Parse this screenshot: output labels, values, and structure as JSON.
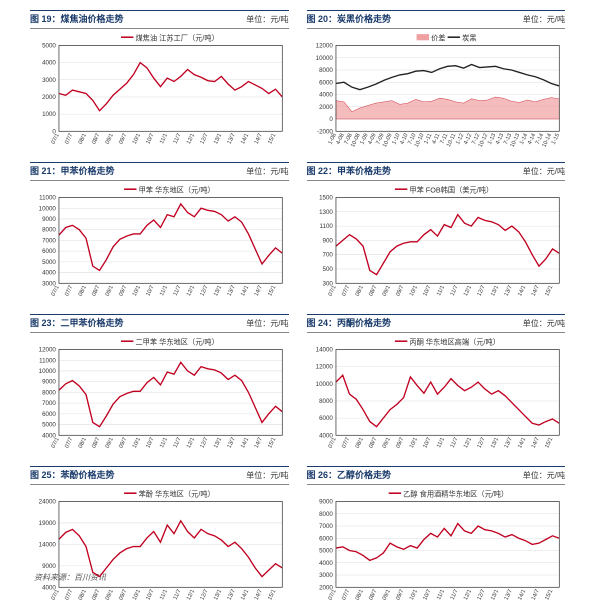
{
  "colors": {
    "primary_line": "#c00020",
    "area_fill": "#f0a0a0",
    "area_line": "#d04050",
    "dark_line": "#222222",
    "grid": "#dddddd",
    "border": "#1a3a6a",
    "axis": "#333333",
    "bg": "#ffffff"
  },
  "typography": {
    "title_fontsize": 9,
    "unit_fontsize": 8,
    "legend_fontsize": 7,
    "axis_fontsize": 6
  },
  "xticks": [
    "07/1",
    "07/7",
    "08/1",
    "08/7",
    "09/1",
    "09/7",
    "10/1",
    "10/7",
    "11/1",
    "11/7",
    "12/1",
    "12/7",
    "13/1",
    "13/7",
    "14/1",
    "14/7",
    "15/1"
  ],
  "xticks_alt": [
    "1-08",
    "4-08",
    "7-08",
    "10-08",
    "1-09",
    "4-09",
    "7-09",
    "10-09",
    "1-10",
    "4-10",
    "7-10",
    "10-10",
    "1-11",
    "4-11",
    "7-11",
    "10-11",
    "1-12",
    "4-12",
    "7-12",
    "10-12",
    "1-13",
    "4-13",
    "7-13",
    "10-13",
    "1-14",
    "4-14",
    "7-14",
    "10-14",
    "1-15"
  ],
  "charts": [
    {
      "id": "c19",
      "fig_label": "图 19：煤焦油价格走势",
      "unit": "单位：元/吨",
      "legend": [
        {
          "label": "煤焦油 江苏工厂（元/吨）",
          "color": "primary_line",
          "type": "line"
        }
      ],
      "ymin": 0,
      "ymax": 5000,
      "ytick_step": 1000,
      "series": [
        {
          "color": "primary_line",
          "type": "line",
          "y": [
            2200,
            2100,
            2400,
            2300,
            2200,
            1800,
            1200,
            1600,
            2100,
            2450,
            2800,
            3300,
            4000,
            3700,
            3100,
            2600,
            3100,
            2900,
            3200,
            3600,
            3300,
            3150,
            2950,
            2900,
            3200,
            2750,
            2400,
            2600,
            2900,
            2700,
            2500,
            2200,
            2450,
            2000
          ]
        }
      ]
    },
    {
      "id": "c20",
      "fig_label": "图 20：炭黑价格走势",
      "unit": "单位：元/吨",
      "legend": [
        {
          "label": "价差",
          "color": "area_fill",
          "type": "area"
        },
        {
          "label": "炭黑",
          "color": "dark_line",
          "type": "line"
        }
      ],
      "ymin": -2000,
      "ymax": 12000,
      "ytick_step": 2000,
      "use_alt_xticks": true,
      "series": [
        {
          "color": "area_fill",
          "type": "area",
          "y": [
            3000,
            2800,
            1200,
            1800,
            2200,
            2600,
            2800,
            3000,
            2400,
            2600,
            3200,
            2800,
            2900,
            3400,
            3200,
            2800,
            2600,
            3300,
            3000,
            3100,
            3600,
            3400,
            2900,
            2700,
            3100,
            2800,
            3200,
            3500,
            3300
          ]
        },
        {
          "color": "dark_line",
          "type": "line",
          "y": [
            5800,
            6000,
            5200,
            4800,
            5200,
            5700,
            6300,
            6800,
            7200,
            7400,
            7800,
            7900,
            7600,
            8200,
            8600,
            8700,
            8300,
            8900,
            8400,
            8500,
            8600,
            8200,
            8000,
            7600,
            7200,
            6900,
            6400,
            5800,
            5400
          ]
        }
      ]
    },
    {
      "id": "c21",
      "fig_label": "图 21：甲苯价格走势",
      "unit": "单位：元/吨",
      "legend": [
        {
          "label": "甲苯 华东地区（元/吨）",
          "color": "primary_line",
          "type": "line"
        }
      ],
      "ymin": 3000,
      "ymax": 11000,
      "ytick_step": 1000,
      "series": [
        {
          "color": "primary_line",
          "type": "line",
          "y": [
            7500,
            8200,
            8400,
            8000,
            7200,
            4600,
            4200,
            5200,
            6400,
            7100,
            7400,
            7600,
            7600,
            8400,
            8900,
            8200,
            9400,
            9200,
            10400,
            9600,
            9200,
            10000,
            9800,
            9700,
            9400,
            8800,
            9200,
            8700,
            7600,
            6200,
            4800,
            5600,
            6300,
            5800
          ]
        }
      ]
    },
    {
      "id": "c22",
      "fig_label": "图 22：甲苯价格走势",
      "unit": "单位：元/吨",
      "legend": [
        {
          "label": "甲苯 FOB韩国（美元/吨）",
          "color": "primary_line",
          "type": "line"
        }
      ],
      "ymin": 300,
      "ymax": 1500,
      "ytick_step": 200,
      "series": [
        {
          "color": "primary_line",
          "type": "line",
          "y": [
            820,
            900,
            980,
            920,
            820,
            480,
            420,
            580,
            740,
            820,
            860,
            880,
            880,
            980,
            1050,
            960,
            1120,
            1080,
            1260,
            1140,
            1100,
            1220,
            1180,
            1160,
            1120,
            1040,
            1100,
            1020,
            880,
            700,
            540,
            640,
            780,
            720
          ]
        }
      ]
    },
    {
      "id": "c23",
      "fig_label": "图 23：二甲苯价格走势",
      "unit": "单位：元/吨",
      "legend": [
        {
          "label": "二甲苯 华东地区（元/吨）",
          "color": "primary_line",
          "type": "line"
        }
      ],
      "ymin": 4000,
      "ymax": 12000,
      "ytick_step": 1000,
      "series": [
        {
          "color": "primary_line",
          "type": "line",
          "y": [
            8200,
            8800,
            9100,
            8600,
            7800,
            5200,
            4800,
            5800,
            6900,
            7600,
            7900,
            8100,
            8100,
            8900,
            9400,
            8700,
            9900,
            9700,
            10800,
            10000,
            9600,
            10400,
            10200,
            10100,
            9800,
            9200,
            9600,
            9100,
            8000,
            6600,
            5200,
            6000,
            6700,
            6200
          ]
        }
      ]
    },
    {
      "id": "c24",
      "fig_label": "图 24：丙酮价格走势",
      "unit": "单位：元/吨",
      "legend": [
        {
          "label": "丙酮 华东地区高端（元/吨）",
          "color": "primary_line",
          "type": "line"
        }
      ],
      "ymin": 4000,
      "ymax": 14000,
      "ytick_step": 2000,
      "series": [
        {
          "color": "primary_line",
          "type": "line",
          "y": [
            10200,
            11000,
            8800,
            8200,
            7000,
            5600,
            5000,
            6000,
            7000,
            7600,
            8400,
            10800,
            9800,
            8900,
            10200,
            8800,
            9600,
            10600,
            9800,
            9200,
            9600,
            10200,
            9400,
            8800,
            9200,
            8600,
            7800,
            7000,
            6200,
            5400,
            5200,
            5600,
            5900,
            5400
          ]
        }
      ]
    },
    {
      "id": "c25",
      "fig_label": "图 25：苯酚价格走势",
      "unit": "单位：元/吨",
      "legend": [
        {
          "label": "苯酚 华东地区（元/吨）",
          "color": "primary_line",
          "type": "line"
        }
      ],
      "ymin": 4000,
      "ymax": 24000,
      "ytick_step": 5000,
      "series": [
        {
          "color": "primary_line",
          "type": "line",
          "y": [
            15200,
            16800,
            17500,
            16000,
            13500,
            7500,
            6500,
            8500,
            10500,
            12000,
            13000,
            13500,
            13500,
            15500,
            17000,
            14500,
            18500,
            16500,
            19500,
            17000,
            15500,
            17500,
            16500,
            16000,
            15000,
            13500,
            14500,
            13000,
            11000,
            8500,
            6500,
            8000,
            9500,
            8500
          ]
        }
      ]
    },
    {
      "id": "c26",
      "fig_label": "图 26：乙醇价格走势",
      "unit": "单位：元/吨",
      "legend": [
        {
          "label": "乙醇 食用酒精华东地区（元/吨）",
          "color": "primary_line",
          "type": "line"
        }
      ],
      "ymin": 2000,
      "ymax": 9000,
      "ytick_step": 1000,
      "series": [
        {
          "color": "primary_line",
          "type": "line",
          "y": [
            5200,
            5300,
            5000,
            4900,
            4600,
            4200,
            4400,
            4800,
            5600,
            5300,
            5100,
            5400,
            5200,
            5900,
            6400,
            6100,
            6800,
            6200,
            7200,
            6600,
            6400,
            7000,
            6700,
            6600,
            6400,
            6100,
            6300,
            6000,
            5800,
            5500,
            5600,
            5900,
            6200,
            6000
          ]
        }
      ]
    }
  ],
  "source_label": "资料来源：百川资讯"
}
